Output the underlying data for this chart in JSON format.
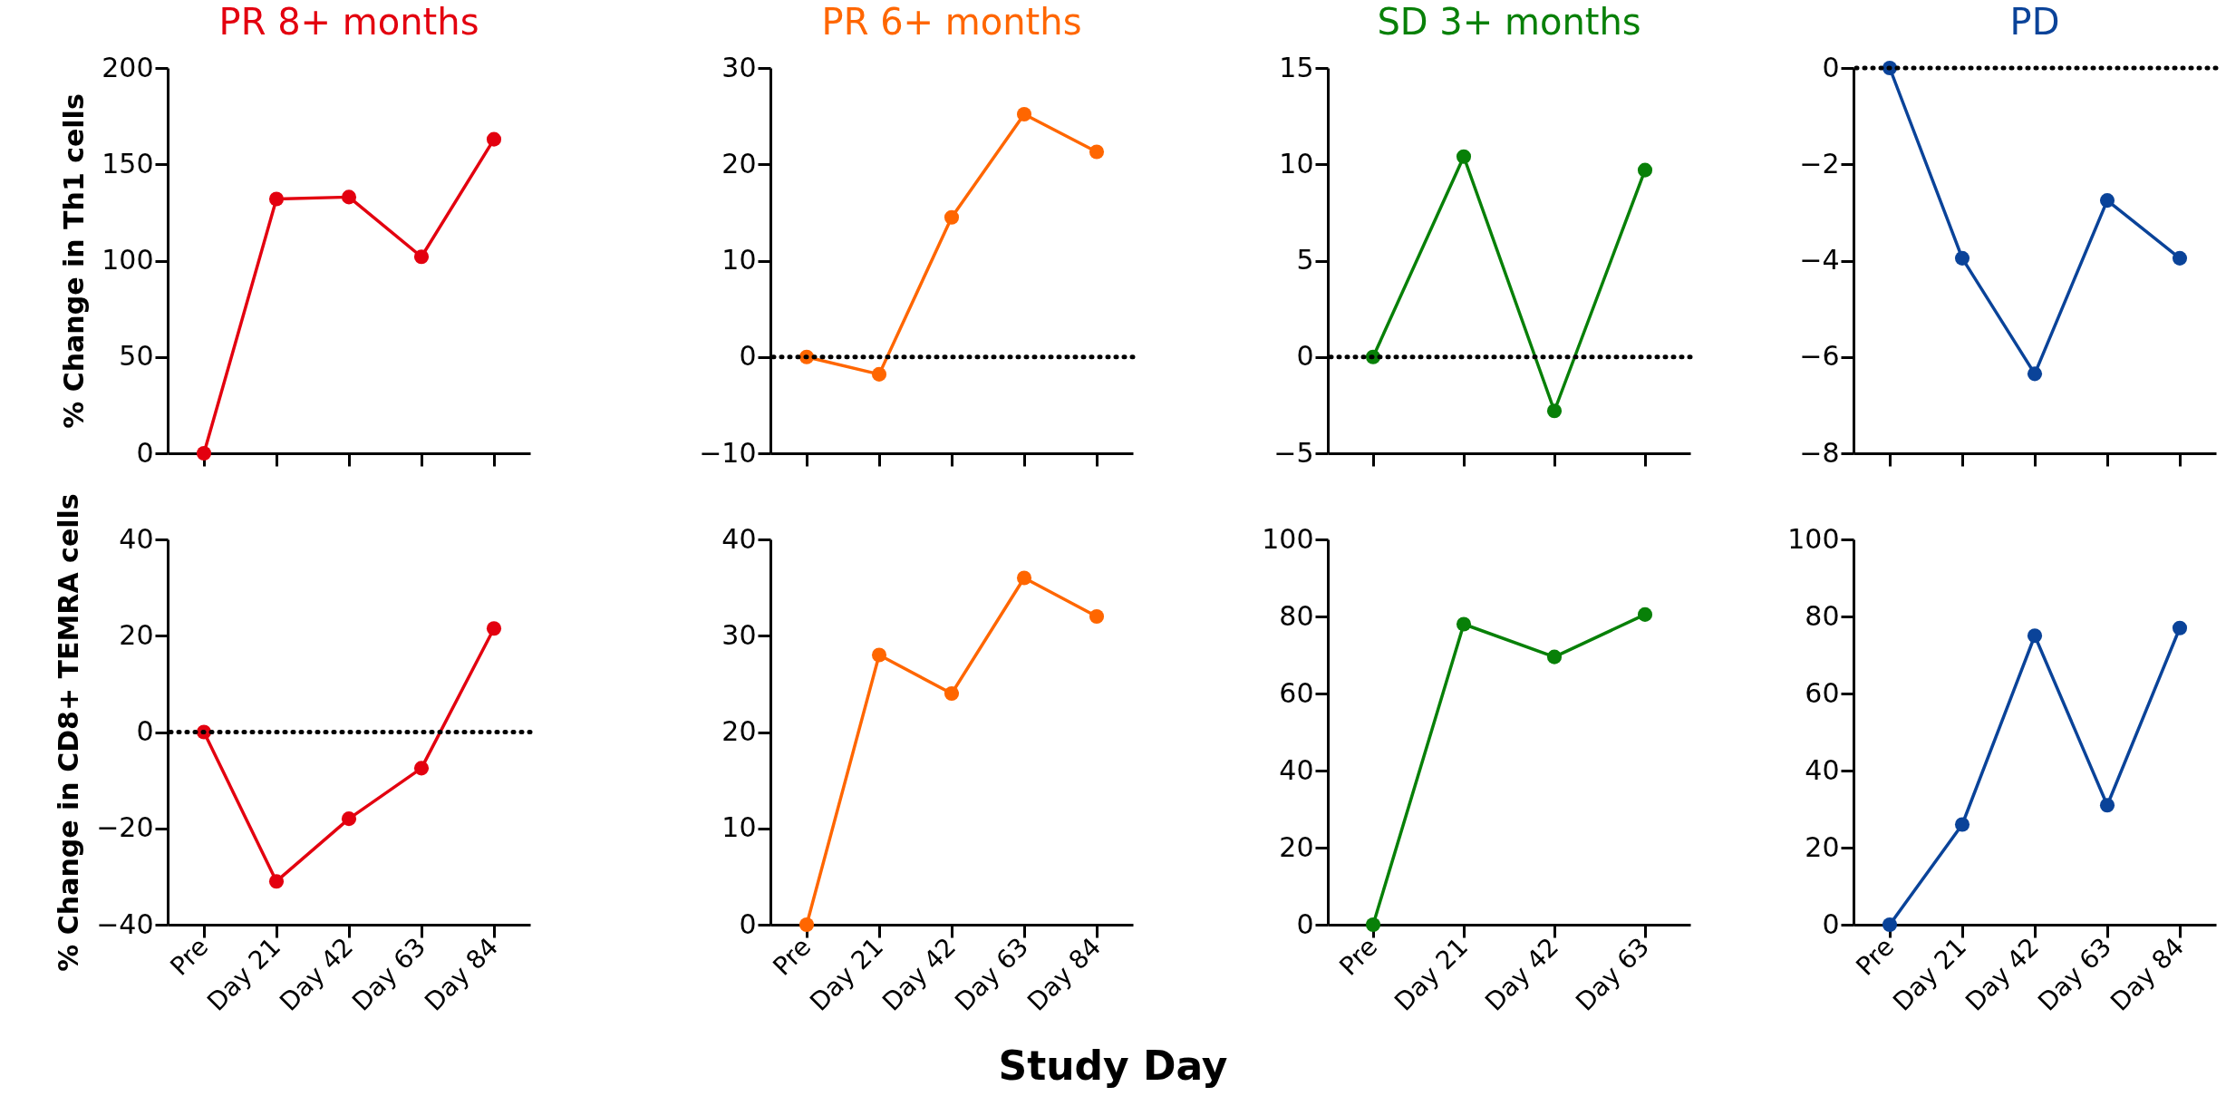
{
  "chart_data": [
    {
      "type": "line",
      "title": "PR 8+ months",
      "ylabel": "% Change in Th1 cells",
      "categories": [
        null,
        null,
        null,
        null,
        null
      ],
      "series": [
        {
          "color": "#e3000f",
          "values": [
            0,
            132,
            133,
            102,
            163
          ]
        }
      ],
      "ylim": [
        0,
        200
      ],
      "yticks": [
        0,
        50,
        100,
        150,
        200
      ],
      "tick_labels": "y",
      "grid": false,
      "marker": "circle",
      "line_style": "solid"
    },
    {
      "type": "line",
      "title": "PR 6+ months",
      "categories": [
        null,
        null,
        null,
        null,
        null
      ],
      "series": [
        {
          "color": "#ff6600",
          "values": [
            0,
            -1.8,
            14.5,
            25.2,
            21.3
          ]
        }
      ],
      "ylim": [
        -10,
        30
      ],
      "yticks": [
        -10,
        0,
        10,
        20,
        30
      ],
      "ref_lines": [
        {
          "axis": "y",
          "value": 0,
          "line_style": "dotted",
          "color": "#000000"
        }
      ],
      "tick_labels": "y",
      "grid": false,
      "marker": "circle",
      "line_style": "solid"
    },
    {
      "type": "line",
      "title": "SD 3+ months",
      "categories": [
        null,
        null,
        null,
        null
      ],
      "series": [
        {
          "color": "#088008",
          "values": [
            0,
            10.4,
            -2.8,
            9.7
          ]
        }
      ],
      "ylim": [
        -5,
        15
      ],
      "yticks": [
        -5,
        0,
        5,
        10,
        15
      ],
      "ref_lines": [
        {
          "axis": "y",
          "value": 0,
          "line_style": "dotted",
          "color": "#000000"
        }
      ],
      "tick_labels": "y",
      "grid": false,
      "marker": "circle",
      "line_style": "solid"
    },
    {
      "type": "line",
      "title": "PD",
      "categories": [
        null,
        null,
        null,
        null,
        null
      ],
      "series": [
        {
          "color": "#0a4399",
          "values": [
            0,
            -3.95,
            -6.35,
            -2.75,
            -3.95
          ]
        }
      ],
      "ylim": [
        -8,
        0
      ],
      "yticks": [
        -8,
        -6,
        -4,
        -2,
        0
      ],
      "ref_lines": [
        {
          "axis": "y",
          "value": 0,
          "line_style": "dotted",
          "color": "#000000"
        }
      ],
      "tick_labels": "y",
      "grid": false,
      "marker": "circle",
      "line_style": "solid"
    },
    {
      "type": "line",
      "ylabel": "% Change in CD8+ TEMRA cells",
      "categories": [
        "Pre",
        "Day 21",
        "Day 42",
        "Day 63",
        "Day 84"
      ],
      "series": [
        {
          "color": "#e3000f",
          "values": [
            0,
            -31,
            -18,
            -7.5,
            21.5
          ]
        }
      ],
      "ylim": [
        -40,
        40
      ],
      "yticks": [
        -40,
        -20,
        0,
        20,
        40
      ],
      "ref_lines": [
        {
          "axis": "y",
          "value": 0,
          "line_style": "dotted",
          "color": "#000000"
        }
      ],
      "grid": false,
      "marker": "circle",
      "line_style": "solid"
    },
    {
      "type": "line",
      "xlabel": "Study Day",
      "categories": [
        "Pre",
        "Day 21",
        "Day 42",
        "Day 63",
        "Day 84"
      ],
      "series": [
        {
          "color": "#ff6600",
          "values": [
            0,
            28,
            24,
            36,
            32
          ]
        }
      ],
      "ylim": [
        0,
        40
      ],
      "yticks": [
        0,
        10,
        20,
        30,
        40
      ],
      "grid": false,
      "marker": "circle",
      "line_style": "solid"
    },
    {
      "type": "line",
      "categories": [
        "Pre",
        "Day 21",
        "Day 42",
        "Day 63"
      ],
      "series": [
        {
          "color": "#088008",
          "values": [
            0,
            78,
            69.5,
            80.5
          ]
        }
      ],
      "ylim": [
        0,
        100
      ],
      "yticks": [
        0,
        20,
        40,
        60,
        80,
        100
      ],
      "grid": false,
      "marker": "circle",
      "line_style": "solid"
    },
    {
      "type": "line",
      "categories": [
        "Pre",
        "Day 21",
        "Day 42",
        "Day 63",
        "Day 84"
      ],
      "series": [
        {
          "color": "#0a4399",
          "values": [
            0,
            26,
            75,
            31,
            77
          ]
        }
      ],
      "ylim": [
        0,
        100
      ],
      "yticks": [
        0,
        20,
        40,
        60,
        80,
        100
      ],
      "grid": false,
      "marker": "circle",
      "line_style": "solid"
    }
  ]
}
